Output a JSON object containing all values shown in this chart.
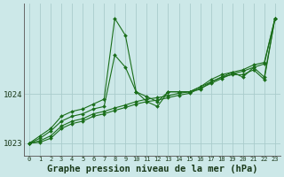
{
  "background_color": "#cce8e8",
  "plot_bg_color": "#cce8e8",
  "grid_color": "#aacccc",
  "line_color": "#1a6e1a",
  "marker_color": "#1a6e1a",
  "xlabel": "Graphe pression niveau de la mer (hPa)",
  "xlabel_fontsize": 7.5,
  "xlim": [
    -0.5,
    23.5
  ],
  "ylim": [
    1022.75,
    1025.85
  ],
  "yticks": [
    1023,
    1024
  ],
  "xtick_labels": [
    "0",
    "1",
    "2",
    "3",
    "4",
    "5",
    "6",
    "7",
    "8",
    "9",
    "10",
    "11",
    "12",
    "13",
    "14",
    "15",
    "16",
    "17",
    "18",
    "19",
    "20",
    "21",
    "22",
    "23"
  ],
  "series": [
    {
      "x": [
        0,
        1,
        2,
        3,
        4,
        5,
        6,
        7,
        8,
        9,
        10,
        11,
        12,
        13,
        14,
        15,
        16,
        17,
        18,
        19,
        20,
        21,
        22,
        23
      ],
      "y": [
        1023.0,
        1023.15,
        1023.3,
        1023.55,
        1023.65,
        1023.7,
        1023.8,
        1023.9,
        1025.55,
        1025.2,
        1024.05,
        1023.95,
        1023.85,
        1024.05,
        1024.05,
        1024.05,
        1024.15,
        1024.3,
        1024.4,
        1024.45,
        1024.35,
        1024.55,
        1024.35,
        1025.55
      ]
    },
    {
      "x": [
        0,
        1,
        2,
        3,
        4,
        5,
        6,
        7,
        8,
        9,
        10,
        11,
        12,
        13,
        14,
        15,
        16,
        17,
        18,
        19,
        20,
        21,
        22,
        23
      ],
      "y": [
        1023.0,
        1023.1,
        1023.25,
        1023.45,
        1023.55,
        1023.6,
        1023.7,
        1023.75,
        1024.8,
        1024.55,
        1024.05,
        1023.85,
        1023.75,
        1024.05,
        1024.05,
        1024.05,
        1024.1,
        1024.25,
        1024.35,
        1024.4,
        1024.4,
        1024.5,
        1024.3,
        1025.55
      ]
    },
    {
      "x": [
        0,
        1,
        2,
        3,
        4,
        5,
        6,
        7,
        8,
        9,
        10,
        11,
        12,
        13,
        14,
        15,
        16,
        17,
        18,
        19,
        20,
        21,
        22,
        23
      ],
      "y": [
        1023.0,
        1023.05,
        1023.15,
        1023.35,
        1023.45,
        1023.5,
        1023.6,
        1023.65,
        1023.72,
        1023.78,
        1023.85,
        1023.9,
        1023.93,
        1023.97,
        1024.02,
        1024.05,
        1024.15,
        1024.25,
        1024.35,
        1024.45,
        1024.5,
        1024.6,
        1024.65,
        1025.55
      ]
    },
    {
      "x": [
        0,
        1,
        2,
        3,
        4,
        5,
        6,
        7,
        8,
        9,
        10,
        11,
        12,
        13,
        14,
        15,
        16,
        17,
        18,
        19,
        20,
        21,
        22,
        23
      ],
      "y": [
        1023.0,
        1023.02,
        1023.1,
        1023.3,
        1023.4,
        1023.45,
        1023.55,
        1023.6,
        1023.67,
        1023.73,
        1023.8,
        1023.85,
        1023.88,
        1023.93,
        1023.98,
        1024.02,
        1024.12,
        1024.22,
        1024.32,
        1024.42,
        1024.47,
        1024.55,
        1024.62,
        1025.55
      ]
    }
  ]
}
